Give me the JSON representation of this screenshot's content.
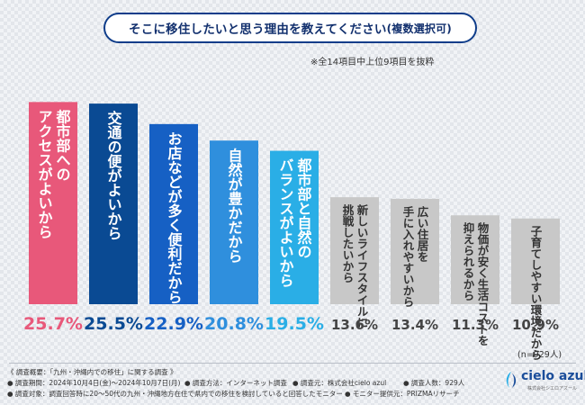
{
  "title": "そこに移住したいと思う理由を教えてください",
  "title_suffix": "(複数選択可)",
  "note": "※全14項目中上位9項目を抜粋",
  "sample_note": "(n=929人)",
  "chart_data": {
    "type": "bar",
    "title": "そこに移住したいと思う理由を教えてください(複数選択可)",
    "unit": "%",
    "ylim": [
      0,
      27
    ],
    "categories": [
      "都市部へのアクセスがよいから",
      "交通の便がよいから",
      "お店などが多く便利だから",
      "自然が豊かだから",
      "都市部と自然のバランスがよいから",
      "新しいライフスタイルに挑戦したいから",
      "広い住居を手に入れやすいから",
      "物価が安く生活コストを抑えられるから",
      "子育てしやすい環境だから"
    ],
    "label_columns": [
      [
        "都市部への",
        "アクセスがよいから"
      ],
      [
        "交通の便がよいから"
      ],
      [
        "お店などが多く便利だから"
      ],
      [
        "自然が豊かだから"
      ],
      [
        "都市部と自然の",
        "バランスがよいから"
      ],
      [
        "新しいライフスタイルに",
        "挑戦したいから"
      ],
      [
        "広い住居を",
        "手に入れやすいから"
      ],
      [
        "物価が安く生活コストを",
        "抑えられるから"
      ],
      [
        "子育てしやすい環境だから"
      ]
    ],
    "values": [
      25.7,
      25.5,
      22.9,
      20.8,
      19.5,
      13.6,
      13.4,
      11.3,
      10.9
    ],
    "value_labels": [
      "25.7%",
      "25.5%",
      "22.9%",
      "20.8%",
      "19.5%",
      "13.6%",
      "13.4%",
      "11.3%",
      "10.9%"
    ],
    "bar_colors": [
      "#e8587a",
      "#0a4a93",
      "#1660c4",
      "#2f8fdd",
      "#2aaee6",
      "#c8c8c8",
      "#c8c8c8",
      "#c8c8c8",
      "#c8c8c8"
    ],
    "value_colors": [
      "#e8587a",
      "#0a4a93",
      "#1660c4",
      "#2f8fdd",
      "#2aaee6",
      "#444444",
      "#444444",
      "#444444",
      "#444444"
    ],
    "grid": false,
    "legend": "none"
  },
  "footer": {
    "line1": "《 調査概要：「九州・沖縄内での移住」に関する調査 》",
    "period": "● 調査期間：2024年10月4日(金)〜2024年10月7日(月)",
    "method": "● 調査方法：インターネット調査",
    "org": "● 調査元：株式会社cielo azul",
    "count": "● 調査人数：929人",
    "target": "● 調査対象：調査回答時に20〜50代の九州・沖縄地方在住で県内での移住を検討していると回答したモニター",
    "provider": "● モニター提供元：PRIZMAリサーチ"
  },
  "logo": {
    "name": "cielo azul",
    "sub": "株式会社シエロアズール"
  }
}
